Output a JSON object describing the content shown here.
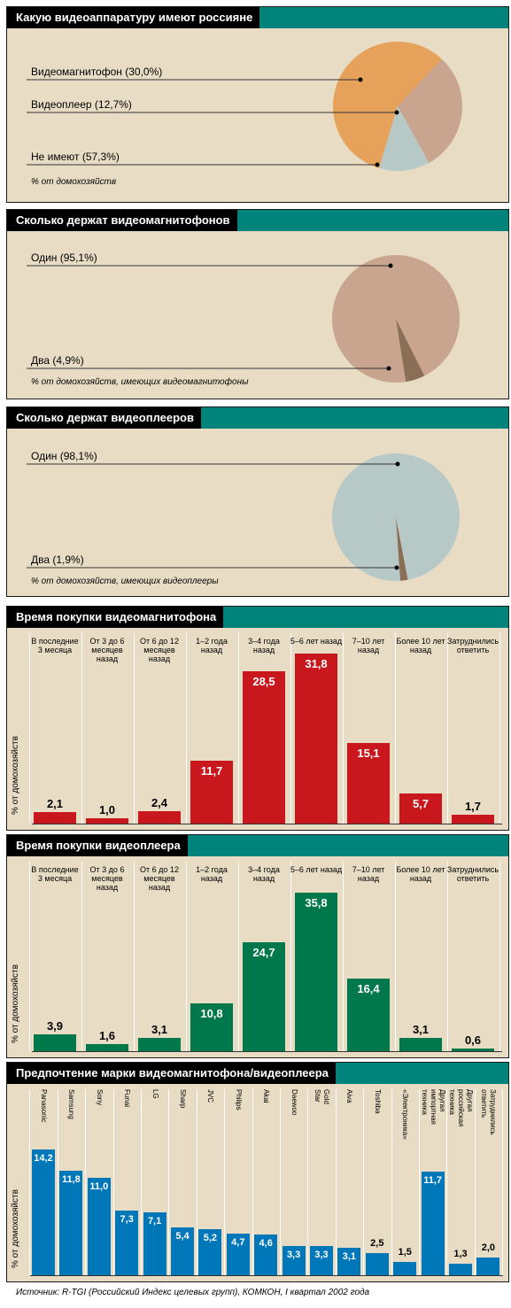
{
  "source": "Источник: R-TGI (Российский Индекс целевых групп), КОМКОН, I квартал 2002 года",
  "colors": {
    "tan": "#c9a48f",
    "blue": "#b7c9c7",
    "orange": "#e6a15a",
    "dark": "#8a6e56",
    "red": "#c8171d",
    "green": "#00784c",
    "cobalt": "#0077b8"
  },
  "pie1": {
    "title": "Какую видеоаппаратуру имеют россияне",
    "note": "% от домохозяйств",
    "chart_data": {
      "type": "pie",
      "title": "Какую видеоаппаратуру имеют россияне",
      "slices": [
        {
          "label": "Видеомагнитофон (30,0%)",
          "value": 30.0
        },
        {
          "label": "Видеоплеер (12,7%)",
          "value": 12.7
        },
        {
          "label": "Не имеют (57,3%)",
          "value": 57.3
        }
      ]
    }
  },
  "pie2": {
    "title": "Сколько держат видеомагнитофонов",
    "note": "% от домохозяйств, имеющих видеомагнитофоны",
    "chart_data": {
      "type": "pie",
      "title": "Сколько держат видеомагнитофонов",
      "slices": [
        {
          "label": "Один  (95,1%)",
          "value": 95.1
        },
        {
          "label": "Два  (4,9%)",
          "value": 4.9
        }
      ]
    }
  },
  "pie3": {
    "title": "Сколько держат видеоплееров",
    "note": "% от домохозяйств, имеющих видеоплееры",
    "chart_data": {
      "type": "pie",
      "title": "Сколько держат видеоплееров",
      "slices": [
        {
          "label": "Один  (98,1%)",
          "value": 98.1
        },
        {
          "label": "Два  (1,9%)",
          "value": 1.9
        }
      ]
    }
  },
  "bar1": {
    "ylabel": "% от домохозяйств",
    "chart_data": {
      "type": "bar",
      "title": "Время покупки видеомагнитофона",
      "ylabel": "% от домохозяйств",
      "categories": [
        "В последние 3 месяца",
        "От 3 до 6 месяцев назад",
        "От 6 до 12 месяцев назад",
        "1–2 года назад",
        "3–4 года назад",
        "5–6 лет назад",
        "7–10 лет назад",
        "Более 10 лет назад",
        "Затруднились ответить"
      ],
      "values": [
        2.1,
        1.0,
        2.4,
        11.7,
        28.5,
        31.8,
        15.1,
        5.7,
        1.7
      ],
      "value_labels": [
        "2,1",
        "1,0",
        "2,4",
        "11,7",
        "28,5",
        "31,8",
        "15,1",
        "5,7",
        "1,7"
      ]
    }
  },
  "bar2": {
    "ylabel": "% от домохозяйств",
    "chart_data": {
      "type": "bar",
      "title": "Время покупки видеоплеера",
      "ylabel": "% от домохозяйств",
      "categories": [
        "В последние 3 месяца",
        "От 3 до 6 месяцев назад",
        "От 6 до 12 месяцев назад",
        "1–2 года назад",
        "3–4 года назад",
        "5–6 лет назад",
        "7–10 лет назад",
        "Более 10 лет назад",
        "Затруднились ответить"
      ],
      "values": [
        3.9,
        1.6,
        3.1,
        10.8,
        24.7,
        35.8,
        16.4,
        3.1,
        0.6
      ],
      "value_labels": [
        "3,9",
        "1,6",
        "3,1",
        "10,8",
        "24,7",
        "35,8",
        "16,4",
        "3,1",
        "0,6"
      ]
    }
  },
  "bar3": {
    "ylabel": "% от домохозяйств",
    "chart_data": {
      "type": "bar",
      "title": "Предпочтение марки видеомагнитофона/видеоплеера",
      "ylabel": "% от домохозяйств",
      "categories": [
        "Panasonic",
        "Samsung",
        "Sony",
        "Funai",
        "LG",
        "Sharp",
        "JVC",
        "Philips",
        "Akai",
        "Daewoo",
        "Gold Star",
        "Aiva",
        "Toshiba",
        "«Электроника»",
        "Другая импортная техника",
        "Другая российская техника",
        "Затруднились ответить"
      ],
      "values": [
        14.2,
        11.8,
        11.0,
        7.3,
        7.1,
        5.4,
        5.2,
        4.7,
        4.6,
        3.3,
        3.3,
        3.1,
        2.5,
        1.5,
        11.7,
        1.3,
        2.0
      ],
      "value_labels": [
        "14,2",
        "11,8",
        "11,0",
        "7,3",
        "7,1",
        "5,4",
        "5,2",
        "4,7",
        "4,6",
        "3,3",
        "3,3",
        "3,1",
        "2,5",
        "1,5",
        "11,7",
        "1,3",
        "2,0"
      ]
    }
  }
}
